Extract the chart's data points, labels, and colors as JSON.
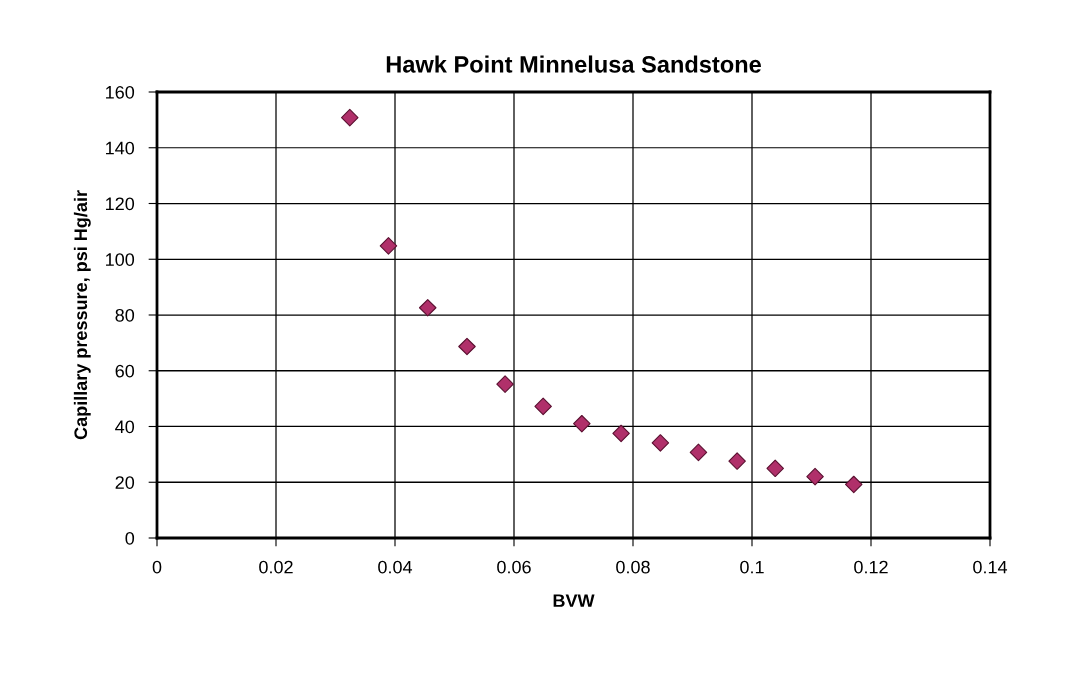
{
  "chart_data": {
    "type": "scatter",
    "title": "Hawk Point Minnelusa Sandstone",
    "xlabel": "BVW",
    "ylabel": "Capillary pressure, psi Hg/air",
    "x": [
      0.0324,
      0.0389,
      0.0455,
      0.0521,
      0.0585,
      0.0649,
      0.0714,
      0.078,
      0.0846,
      0.091,
      0.0975,
      0.1039,
      0.1106,
      0.1171
    ],
    "series": [
      {
        "color": "#b0306a",
        "values": [
          150.8,
          104.8,
          82.6,
          68.7,
          55.2,
          47.2,
          41.0,
          37.5,
          34.1,
          30.7,
          27.6,
          25.0,
          22.0,
          19.2
        ]
      }
    ],
    "xlim": [
      0,
      0.14
    ],
    "xticks": [
      0,
      0.02,
      0.04,
      0.06,
      0.08,
      0.1,
      0.12,
      0.14
    ],
    "ylim": [
      0,
      160
    ],
    "yticks": [
      0,
      20,
      40,
      60,
      80,
      100,
      120,
      140,
      160
    ],
    "grid": true,
    "marker": "diamond",
    "legend": false
  }
}
